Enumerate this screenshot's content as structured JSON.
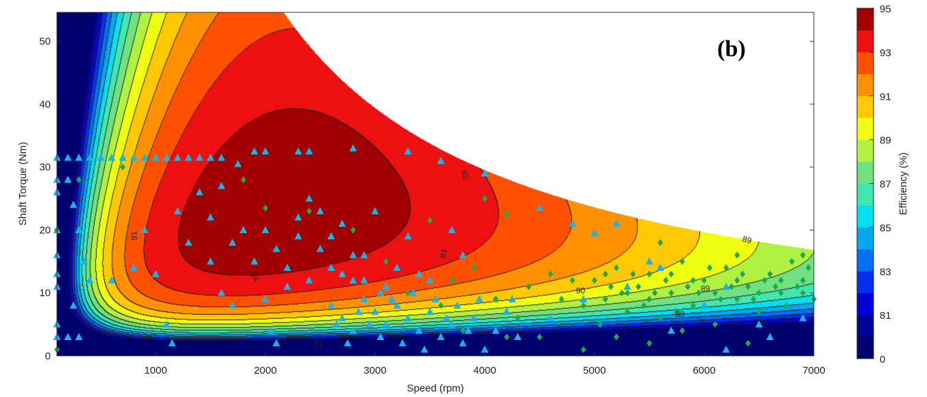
{
  "chart_data": {
    "type": "contour-scatter",
    "panel_label": "(b)",
    "xlabel": "Speed (rpm)",
    "ylabel": "Shaft Torque (Nm)",
    "xlim": [
      100,
      7000
    ],
    "ylim": [
      0,
      54.6
    ],
    "xticks": [
      1000,
      2000,
      3000,
      4000,
      5000,
      6000,
      7000
    ],
    "yticks": [
      0,
      10,
      20,
      30,
      40,
      50
    ],
    "grid": false,
    "colorbar": {
      "label": "Efficiency (%)",
      "tick_labels": [
        "95",
        "93",
        "91",
        "89",
        "87",
        "85",
        "83",
        "81",
        "0"
      ],
      "levels": [
        0,
        80,
        81,
        82,
        83,
        84,
        85,
        86,
        87,
        88,
        89,
        90,
        91,
        92,
        93,
        94,
        95
      ],
      "colors": [
        "#00006e",
        "#000096",
        "#0000d8",
        "#0030f0",
        "#0070f8",
        "#00a8f0",
        "#00e0f0",
        "#40e8b0",
        "#70e080",
        "#b0f040",
        "#f0ff10",
        "#ffc800",
        "#ff9000",
        "#ff5000",
        "#ee1010",
        "#a00000"
      ]
    },
    "contour_labels": [
      "75",
      "81",
      "84",
      "91",
      "92",
      "93",
      "90",
      "89",
      "89",
      "88"
    ],
    "peak_region": {
      "speed_rpm": 2500,
      "torque_nm": 22,
      "efficiency_pct": 95
    },
    "series": [
      {
        "marker": "triangle",
        "color": "#1ab2e8",
        "points": [
          [
            100,
            31.5
          ],
          [
            200,
            31.5
          ],
          [
            300,
            31.5
          ],
          [
            400,
            31.5
          ],
          [
            500,
            31.5
          ],
          [
            600,
            31.5
          ],
          [
            700,
            31.5
          ],
          [
            800,
            31.5
          ],
          [
            900,
            31.5
          ],
          [
            1000,
            31.5
          ],
          [
            1100,
            31.5
          ],
          [
            1200,
            31.5
          ],
          [
            1300,
            31.5
          ],
          [
            1400,
            31.5
          ],
          [
            1500,
            31.5
          ],
          [
            1600,
            31.5
          ],
          [
            1750,
            30.5
          ],
          [
            1900,
            32.5
          ],
          [
            2000,
            32.5
          ],
          [
            2300,
            32.5
          ],
          [
            2400,
            32.5
          ],
          [
            2800,
            33
          ],
          [
            3300,
            32.5
          ],
          [
            3600,
            31
          ],
          [
            4000,
            29
          ],
          [
            4500,
            23.5
          ],
          [
            4800,
            21
          ],
          [
            5200,
            21
          ],
          [
            5000,
            19.5
          ],
          [
            5500,
            15
          ],
          [
            5600,
            14
          ],
          [
            6200,
            11
          ],
          [
            6500,
            5
          ],
          [
            6200,
            1
          ],
          [
            100,
            28
          ],
          [
            100,
            26
          ],
          [
            100,
            20
          ],
          [
            100,
            16
          ],
          [
            100,
            13
          ],
          [
            100,
            11
          ],
          [
            100,
            5
          ],
          [
            100,
            3
          ],
          [
            200,
            28
          ],
          [
            250,
            24
          ],
          [
            300,
            20
          ],
          [
            350,
            15
          ],
          [
            400,
            12
          ],
          [
            250,
            8
          ],
          [
            300,
            3
          ],
          [
            200,
            3
          ],
          [
            600,
            12
          ],
          [
            800,
            14
          ],
          [
            900,
            20
          ],
          [
            1000,
            13
          ],
          [
            1100,
            5
          ],
          [
            1150,
            2
          ],
          [
            1200,
            23
          ],
          [
            1300,
            18
          ],
          [
            1400,
            26
          ],
          [
            1500,
            15
          ],
          [
            1600,
            10
          ],
          [
            1700,
            8
          ],
          [
            1800,
            20
          ],
          [
            1900,
            15
          ],
          [
            2000,
            9
          ],
          [
            2050,
            4
          ],
          [
            2100,
            2
          ],
          [
            2200,
            11
          ],
          [
            2300,
            19
          ],
          [
            2400,
            25
          ],
          [
            2500,
            17
          ],
          [
            2600,
            14
          ],
          [
            2700,
            21
          ],
          [
            2800,
            12
          ],
          [
            2900,
            16
          ],
          [
            3000,
            23
          ],
          [
            3100,
            11
          ],
          [
            3300,
            19
          ],
          [
            3400,
            13
          ],
          [
            3700,
            20
          ],
          [
            3800,
            16
          ],
          [
            1500,
            22
          ],
          [
            1600,
            27
          ],
          [
            1700,
            18
          ],
          [
            2000,
            20
          ],
          [
            2100,
            17
          ],
          [
            2200,
            14
          ],
          [
            2300,
            22
          ],
          [
            2400,
            12
          ],
          [
            2500,
            23
          ],
          [
            2600,
            19
          ],
          [
            2700,
            13
          ],
          [
            2800,
            16
          ],
          [
            2900,
            12
          ],
          [
            3200,
            14
          ],
          [
            3500,
            12
          ],
          [
            2600,
            8
          ],
          [
            2700,
            6
          ],
          [
            2800,
            4
          ],
          [
            2900,
            9
          ],
          [
            3000,
            7
          ],
          [
            3050,
            3
          ],
          [
            3100,
            5
          ],
          [
            3200,
            8
          ],
          [
            3250,
            2
          ],
          [
            3300,
            6
          ],
          [
            3400,
            4
          ],
          [
            3500,
            7
          ],
          [
            3600,
            3
          ],
          [
            3700,
            5
          ],
          [
            3800,
            2
          ],
          [
            3900,
            6
          ],
          [
            4000,
            1
          ],
          [
            4100,
            4
          ],
          [
            4200,
            7
          ],
          [
            4300,
            3
          ],
          [
            2750,
            2
          ],
          [
            2950,
            5
          ],
          [
            3150,
            9
          ],
          [
            3350,
            10
          ],
          [
            3450,
            1
          ],
          [
            3550,
            9
          ],
          [
            3750,
            8
          ],
          [
            3950,
            9
          ],
          [
            4250,
            9
          ],
          [
            2650,
            5
          ],
          [
            2850,
            7
          ],
          [
            3050,
            10
          ],
          [
            3650,
            6
          ],
          [
            3850,
            4
          ],
          [
            4600,
            6
          ],
          [
            4900,
            9
          ],
          [
            5300,
            11
          ],
          [
            5700,
            4
          ],
          [
            6000,
            8
          ],
          [
            6600,
            3
          ],
          [
            6900,
            6
          ]
        ]
      },
      {
        "marker": "diamond",
        "color": "#20a850",
        "points": [
          [
            300,
            28
          ],
          [
            100,
            20
          ],
          [
            100,
            1
          ],
          [
            700,
            30
          ],
          [
            1800,
            28
          ],
          [
            2000,
            23.5
          ],
          [
            2400,
            23
          ],
          [
            2800,
            20
          ],
          [
            3100,
            15
          ],
          [
            3500,
            21.5
          ],
          [
            4000,
            25
          ],
          [
            4200,
            22.5
          ],
          [
            3300,
            10
          ],
          [
            3600,
            8
          ],
          [
            3700,
            12
          ],
          [
            3900,
            14
          ],
          [
            4100,
            9
          ],
          [
            4300,
            6
          ],
          [
            4400,
            11
          ],
          [
            4600,
            13
          ],
          [
            4700,
            9
          ],
          [
            4800,
            12
          ],
          [
            4900,
            8
          ],
          [
            4500,
            3
          ],
          [
            4200,
            3
          ],
          [
            3800,
            4
          ],
          [
            5000,
            12
          ],
          [
            5100,
            9
          ],
          [
            5200,
            14
          ],
          [
            5300,
            7
          ],
          [
            5400,
            11
          ],
          [
            5500,
            13
          ],
          [
            5600,
            6
          ],
          [
            5700,
            10
          ],
          [
            5800,
            15
          ],
          [
            5900,
            8
          ],
          [
            6000,
            12
          ],
          [
            6100,
            5
          ],
          [
            6200,
            14
          ],
          [
            6300,
            9
          ],
          [
            6400,
            11
          ],
          [
            6500,
            7
          ],
          [
            6600,
            13
          ],
          [
            6700,
            10
          ],
          [
            6800,
            15
          ],
          [
            6900,
            12
          ],
          [
            7000,
            9
          ],
          [
            5050,
            5
          ],
          [
            5150,
            11
          ],
          [
            5250,
            10
          ],
          [
            5350,
            13
          ],
          [
            5450,
            8
          ],
          [
            5550,
            10
          ],
          [
            5650,
            12
          ],
          [
            5750,
            7
          ],
          [
            5850,
            11
          ],
          [
            5950,
            10
          ],
          [
            6050,
            14
          ],
          [
            6150,
            9
          ],
          [
            6250,
            11
          ],
          [
            6350,
            13
          ],
          [
            6450,
            9
          ],
          [
            6550,
            12
          ],
          [
            6650,
            11
          ],
          [
            6750,
            8
          ],
          [
            6850,
            11
          ],
          [
            6950,
            14
          ],
          [
            5100,
            13
          ],
          [
            5300,
            10
          ],
          [
            5500,
            9
          ],
          [
            5700,
            13
          ],
          [
            5900,
            12
          ],
          [
            6100,
            10
          ],
          [
            6300,
            12
          ],
          [
            6500,
            10
          ],
          [
            6700,
            12
          ],
          [
            6900,
            10
          ],
          [
            5600,
            18
          ],
          [
            6300,
            16
          ],
          [
            6900,
            16
          ],
          [
            5200,
            3
          ],
          [
            5800,
            4
          ],
          [
            6400,
            2
          ],
          [
            4900,
            1
          ],
          [
            5500,
            2
          ]
        ]
      }
    ]
  }
}
